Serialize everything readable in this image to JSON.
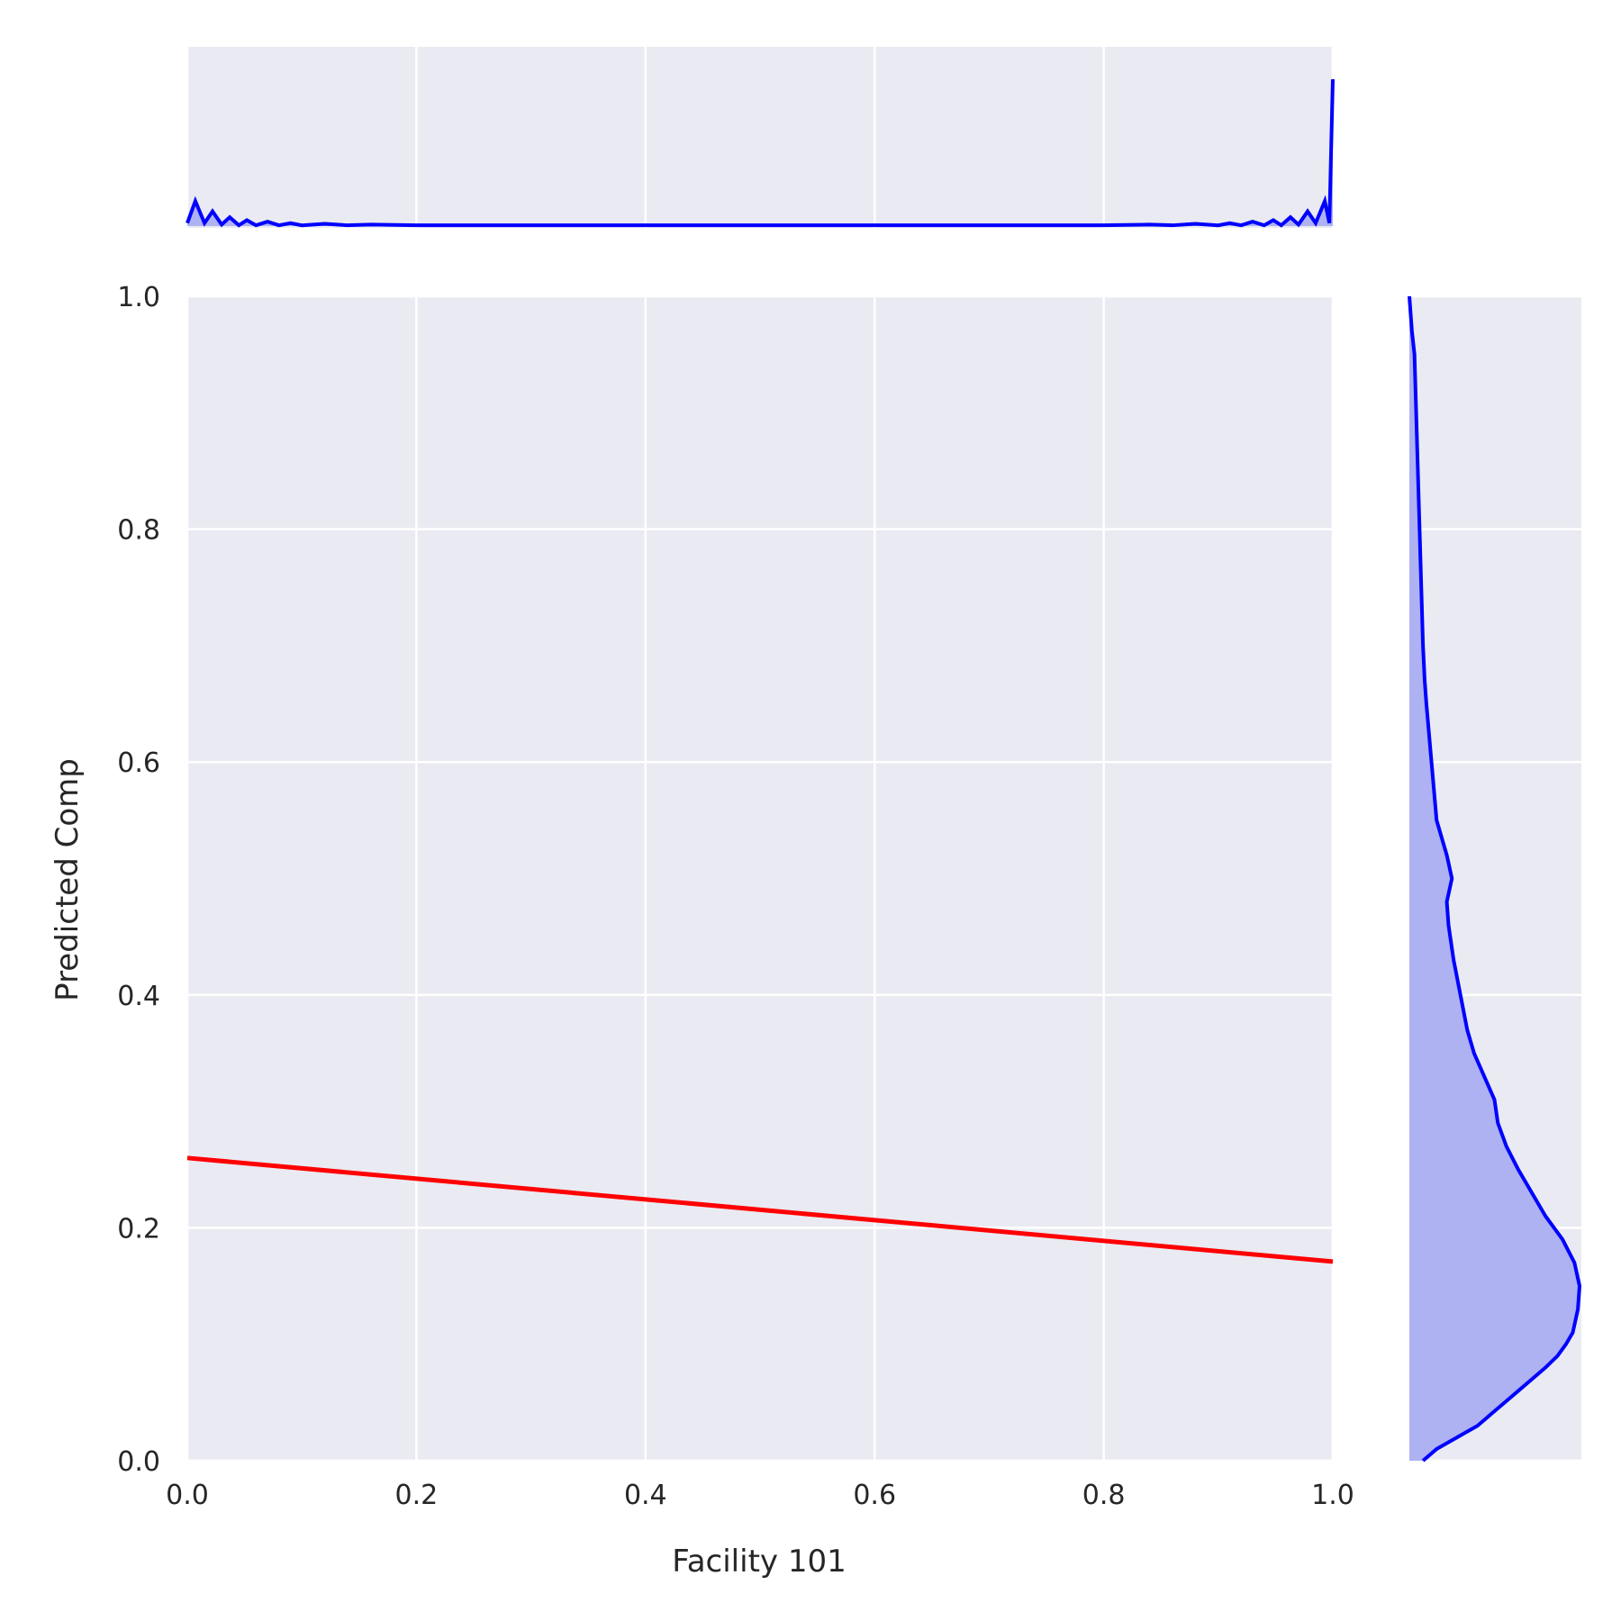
{
  "chart_data": {
    "type": "line",
    "title": "",
    "xlabel": "Facility 101",
    "ylabel": "Predicted Comp",
    "xlim": [
      0,
      1
    ],
    "ylim": [
      0,
      1
    ],
    "xticks": [
      "0.0",
      "0.2",
      "0.4",
      "0.6",
      "0.8",
      "1.0"
    ],
    "yticks": [
      "0.0",
      "0.2",
      "0.4",
      "0.6",
      "0.8",
      "1.0"
    ],
    "grid": true,
    "legend": "none",
    "series": [
      {
        "role": "regression-line",
        "color": "#ff0000",
        "x": [
          0.0,
          1.0
        ],
        "y": [
          0.26,
          0.171
        ]
      }
    ],
    "marginal_x": {
      "type": "kde",
      "color": "#0000ff",
      "fill": "#aeb1f2",
      "x": [
        0.0,
        0.007,
        0.015,
        0.022,
        0.03,
        0.037,
        0.045,
        0.052,
        0.06,
        0.07,
        0.08,
        0.09,
        0.1,
        0.12,
        0.14,
        0.16,
        0.2,
        0.3,
        0.5,
        0.7,
        0.8,
        0.84,
        0.86,
        0.88,
        0.9,
        0.91,
        0.92,
        0.93,
        0.94,
        0.948,
        0.955,
        0.963,
        0.97,
        0.978,
        0.985,
        0.993,
        0.997,
        1.0
      ],
      "density": [
        0.02,
        0.17,
        0.02,
        0.1,
        0.01,
        0.06,
        0.005,
        0.04,
        0.005,
        0.03,
        0.005,
        0.02,
        0.005,
        0.015,
        0.005,
        0.01,
        0.005,
        0.005,
        0.005,
        0.005,
        0.005,
        0.01,
        0.005,
        0.015,
        0.005,
        0.02,
        0.005,
        0.03,
        0.005,
        0.04,
        0.005,
        0.06,
        0.01,
        0.1,
        0.02,
        0.17,
        0.02,
        1.0
      ]
    },
    "marginal_y": {
      "type": "kde",
      "color": "#0000ff",
      "fill": "#aeb1f2",
      "y": [
        0.0,
        0.01,
        0.02,
        0.03,
        0.04,
        0.05,
        0.06,
        0.07,
        0.08,
        0.09,
        0.1,
        0.11,
        0.13,
        0.15,
        0.17,
        0.19,
        0.21,
        0.23,
        0.25,
        0.27,
        0.29,
        0.31,
        0.33,
        0.35,
        0.37,
        0.4,
        0.43,
        0.46,
        0.48,
        0.5,
        0.52,
        0.55,
        0.6,
        0.65,
        0.67,
        0.7,
        0.75,
        0.8,
        0.85,
        0.9,
        0.95,
        0.97,
        1.0
      ],
      "density": [
        0.08,
        0.16,
        0.28,
        0.4,
        0.48,
        0.56,
        0.64,
        0.72,
        0.8,
        0.87,
        0.92,
        0.96,
        0.99,
        1.0,
        0.97,
        0.9,
        0.8,
        0.72,
        0.64,
        0.57,
        0.52,
        0.5,
        0.44,
        0.38,
        0.34,
        0.3,
        0.26,
        0.23,
        0.22,
        0.25,
        0.22,
        0.16,
        0.13,
        0.1,
        0.09,
        0.08,
        0.07,
        0.06,
        0.05,
        0.04,
        0.03,
        0.015,
        0.0
      ]
    }
  }
}
